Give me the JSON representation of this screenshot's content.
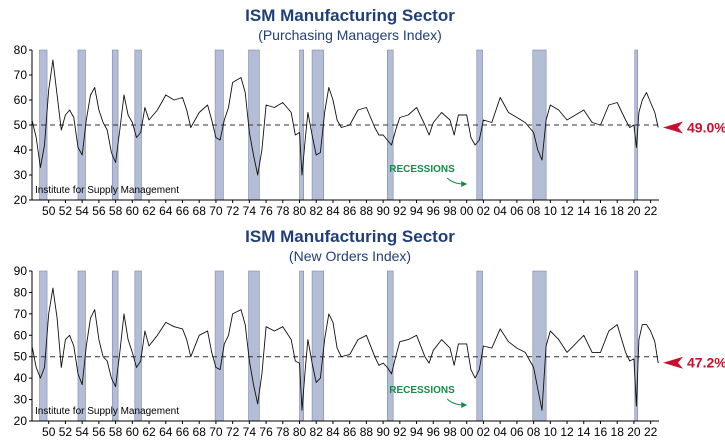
{
  "recession_label": "RECESSIONS",
  "source_label": "Institute for Supply Management",
  "colors": {
    "title": "#1f3f7a",
    "recession_fill": "#b4bdd6",
    "recession_stroke": "#7d8ab0",
    "line": "#111111",
    "reference_line": "#333333",
    "callout": "#c8102e",
    "recession_label": "#1a8a4a"
  },
  "recessions": [
    [
      1948.9,
      1949.8
    ],
    [
      1953.5,
      1954.4
    ],
    [
      1957.6,
      1958.3
    ],
    [
      1960.3,
      1961.1
    ],
    [
      1969.9,
      1970.9
    ],
    [
      1973.9,
      1975.2
    ],
    [
      1980.0,
      1980.5
    ],
    [
      1981.5,
      1982.9
    ],
    [
      1990.5,
      1991.2
    ],
    [
      2001.2,
      2001.9
    ],
    [
      2007.9,
      2009.5
    ],
    [
      2020.1,
      2020.4
    ]
  ],
  "chart_data": [
    {
      "type": "line",
      "title": "ISM Manufacturing Sector",
      "subtitle": "(Purchasing Managers Index)",
      "ylim": [
        20,
        80
      ],
      "yticks": [
        20,
        30,
        40,
        50,
        60,
        70,
        80
      ],
      "xlim": [
        1948,
        2023
      ],
      "xtick_labels": [
        "50",
        "52",
        "54",
        "56",
        "58",
        "60",
        "62",
        "64",
        "66",
        "68",
        "70",
        "72",
        "74",
        "76",
        "78",
        "80",
        "82",
        "84",
        "86",
        "88",
        "90",
        "92",
        "94",
        "96",
        "98",
        "00",
        "02",
        "04",
        "06",
        "08",
        "10",
        "12",
        "14",
        "16",
        "18",
        "20",
        "22"
      ],
      "reference_value": 50,
      "latest_label": "49.0%",
      "latest_value": 49.0,
      "series": [
        {
          "x": [
            1948.0,
            1948.5,
            1949.0,
            1949.5,
            1950.0,
            1950.5,
            1951.0,
            1951.5,
            1952.0,
            1952.5,
            1953.0,
            1953.5,
            1954.0,
            1954.5,
            1955.0,
            1955.5,
            1956.0,
            1956.5,
            1957.0,
            1957.5,
            1958.0,
            1958.5,
            1959.0,
            1959.5,
            1960.0,
            1960.5,
            1961.0,
            1961.5,
            1962.0,
            1963.0,
            1964.0,
            1965.0,
            1966.0,
            1966.5,
            1967.0,
            1968.0,
            1969.0,
            1969.5,
            1970.0,
            1970.5,
            1971.0,
            1971.5,
            1972.0,
            1973.0,
            1973.5,
            1974.0,
            1974.5,
            1975.0,
            1975.5,
            1976.0,
            1977.0,
            1978.0,
            1979.0,
            1979.5,
            1980.0,
            1980.3,
            1980.7,
            1981.0,
            1981.5,
            1982.0,
            1982.5,
            1983.0,
            1983.5,
            1984.0,
            1984.5,
            1985.0,
            1986.0,
            1987.0,
            1988.0,
            1989.0,
            1989.5,
            1990.0,
            1990.5,
            1991.0,
            1991.5,
            1992.0,
            1993.0,
            1994.0,
            1995.0,
            1995.5,
            1996.0,
            1997.0,
            1998.0,
            1998.5,
            1999.0,
            2000.0,
            2000.5,
            2001.0,
            2001.5,
            2002.0,
            2003.0,
            2004.0,
            2005.0,
            2006.0,
            2007.0,
            2008.0,
            2008.5,
            2009.0,
            2009.5,
            2010.0,
            2011.0,
            2012.0,
            2013.0,
            2014.0,
            2015.0,
            2016.0,
            2017.0,
            2018.0,
            2019.0,
            2019.5,
            2020.0,
            2020.3,
            2020.6,
            2021.0,
            2021.5,
            2022.0,
            2022.5,
            2022.9
          ],
          "y": [
            52,
            45,
            33,
            42,
            64,
            76,
            62,
            48,
            54,
            56,
            53,
            41,
            38,
            52,
            62,
            65,
            56,
            51,
            48,
            39,
            35,
            48,
            62,
            54,
            51,
            45,
            47,
            57,
            52,
            56,
            62,
            60,
            61,
            56,
            49,
            55,
            58,
            52,
            45,
            44,
            52,
            57,
            67,
            69,
            63,
            47,
            38,
            30,
            40,
            58,
            57,
            59,
            55,
            46,
            47,
            30,
            45,
            55,
            46,
            38,
            39,
            55,
            65,
            60,
            52,
            49,
            50,
            56,
            57,
            49,
            46,
            46,
            44,
            42,
            48,
            53,
            54,
            57,
            50,
            46,
            51,
            55,
            52,
            46,
            54,
            54,
            45,
            42,
            44,
            52,
            51,
            61,
            55,
            53,
            51,
            47,
            40,
            36,
            52,
            58,
            56,
            52,
            54,
            56,
            51,
            50,
            58,
            59,
            52,
            49,
            50,
            41,
            55,
            60,
            63,
            59,
            55,
            49
          ]
        }
      ]
    },
    {
      "type": "line",
      "title": "ISM Manufacturing Sector",
      "subtitle": "(New Orders Index)",
      "ylim": [
        20,
        90
      ],
      "yticks": [
        20,
        30,
        40,
        50,
        60,
        70,
        80,
        90
      ],
      "xlim": [
        1948,
        2023
      ],
      "xtick_labels": [
        "50",
        "52",
        "54",
        "56",
        "58",
        "60",
        "62",
        "64",
        "66",
        "68",
        "70",
        "72",
        "74",
        "76",
        "78",
        "80",
        "82",
        "84",
        "86",
        "88",
        "90",
        "92",
        "94",
        "96",
        "98",
        "00",
        "02",
        "04",
        "06",
        "08",
        "10",
        "12",
        "14",
        "16",
        "18",
        "20",
        "22"
      ],
      "reference_value": 50,
      "latest_label": "47.2%",
      "latest_value": 47.2,
      "series": [
        {
          "x": [
            1948.0,
            1948.5,
            1949.0,
            1949.5,
            1950.0,
            1950.5,
            1951.0,
            1951.5,
            1952.0,
            1952.5,
            1953.0,
            1953.5,
            1954.0,
            1954.5,
            1955.0,
            1955.5,
            1956.0,
            1956.5,
            1957.0,
            1957.5,
            1958.0,
            1958.5,
            1959.0,
            1959.5,
            1960.0,
            1960.5,
            1961.0,
            1961.5,
            1962.0,
            1963.0,
            1964.0,
            1965.0,
            1966.0,
            1966.5,
            1967.0,
            1968.0,
            1969.0,
            1969.5,
            1970.0,
            1970.5,
            1971.0,
            1971.5,
            1972.0,
            1973.0,
            1973.5,
            1974.0,
            1974.5,
            1975.0,
            1975.5,
            1976.0,
            1977.0,
            1978.0,
            1979.0,
            1979.5,
            1980.0,
            1980.3,
            1980.7,
            1981.0,
            1981.5,
            1982.0,
            1982.5,
            1983.0,
            1983.5,
            1984.0,
            1984.5,
            1985.0,
            1986.0,
            1987.0,
            1988.0,
            1989.0,
            1989.5,
            1990.0,
            1990.5,
            1991.0,
            1991.5,
            1992.0,
            1993.0,
            1994.0,
            1995.0,
            1995.5,
            1996.0,
            1997.0,
            1998.0,
            1998.5,
            1999.0,
            2000.0,
            2000.5,
            2001.0,
            2001.5,
            2002.0,
            2003.0,
            2004.0,
            2005.0,
            2006.0,
            2007.0,
            2008.0,
            2008.5,
            2009.0,
            2009.5,
            2010.0,
            2011.0,
            2012.0,
            2013.0,
            2014.0,
            2015.0,
            2016.0,
            2017.0,
            2018.0,
            2019.0,
            2019.5,
            2020.0,
            2020.3,
            2020.6,
            2021.0,
            2021.5,
            2022.0,
            2022.5,
            2022.9
          ],
          "y": [
            55,
            45,
            40,
            45,
            70,
            82,
            68,
            45,
            58,
            60,
            55,
            42,
            37,
            55,
            68,
            72,
            58,
            50,
            48,
            40,
            36,
            52,
            70,
            58,
            52,
            45,
            48,
            62,
            55,
            60,
            66,
            64,
            63,
            58,
            50,
            60,
            62,
            52,
            45,
            44,
            56,
            60,
            70,
            72,
            65,
            48,
            37,
            28,
            42,
            64,
            62,
            64,
            58,
            48,
            47,
            25,
            45,
            58,
            47,
            38,
            40,
            58,
            70,
            66,
            54,
            50,
            51,
            58,
            60,
            50,
            46,
            47,
            45,
            42,
            50,
            57,
            58,
            60,
            50,
            47,
            53,
            58,
            54,
            46,
            56,
            56,
            44,
            40,
            44,
            55,
            54,
            63,
            57,
            54,
            52,
            45,
            35,
            25,
            55,
            62,
            58,
            52,
            56,
            60,
            52,
            52,
            62,
            65,
            52,
            48,
            49,
            27,
            58,
            65,
            65,
            62,
            57,
            47
          ]
        }
      ]
    }
  ]
}
